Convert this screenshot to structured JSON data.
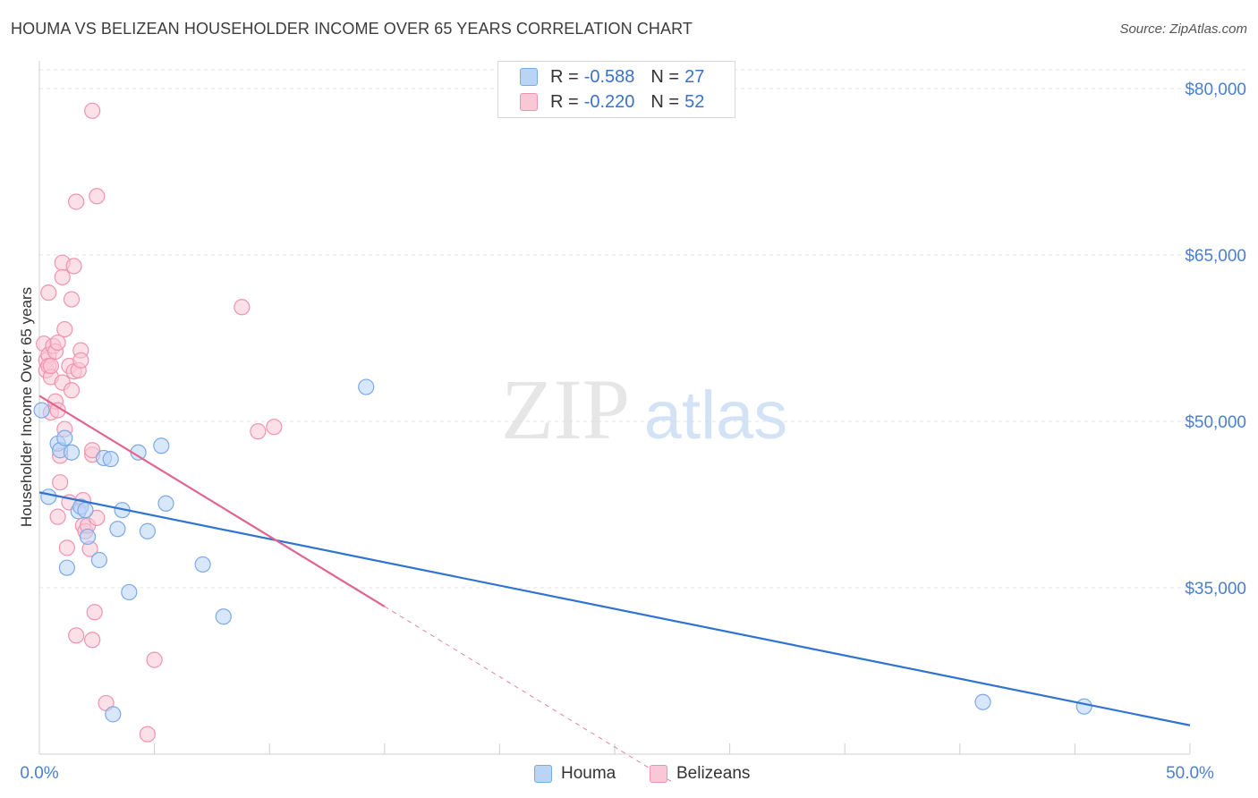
{
  "title": "HOUMA VS BELIZEAN HOUSEHOLDER INCOME OVER 65 YEARS CORRELATION CHART",
  "source": "Source: ZipAtlas.com",
  "watermark": {
    "zip": "ZIP",
    "atlas": "atlas"
  },
  "legend": {
    "series1": {
      "r_label": "R =",
      "r_value": "-0.588",
      "n_label": "N =",
      "n_value": "27"
    },
    "series2": {
      "r_label": "R =",
      "r_value": "-0.220",
      "n_label": "N =",
      "n_value": "52"
    }
  },
  "bottom_legend": {
    "houma": "Houma",
    "belizeans": "Belizeans"
  },
  "colors": {
    "houma_fill": "#b9d4f5",
    "houma_stroke": "#7aaae6",
    "houma_line": "#2f74d0",
    "belize_fill": "#f9c7d6",
    "belize_stroke": "#ef93b0",
    "belize_line": "#e0648e",
    "tick_label": "#4a7fd0",
    "grid": "#e3e3e3"
  },
  "chart_data": {
    "type": "scatter",
    "title": "HOUMA VS BELIZEAN HOUSEHOLDER INCOME OVER 65 YEARS CORRELATION CHART",
    "xlabel": "",
    "ylabel": "Householder Income Over 65 years",
    "xlim": [
      0,
      50
    ],
    "ylim": [
      20000,
      82500
    ],
    "x_tick_labels": [
      {
        "value": 0,
        "label": "0.0%"
      },
      {
        "value": 50,
        "label": "50.0%"
      }
    ],
    "y_ticks": [
      {
        "value": 80000,
        "label": "$80,000"
      },
      {
        "value": 65000,
        "label": "$65,000"
      },
      {
        "value": 50000,
        "label": "$50,000"
      },
      {
        "value": 35000,
        "label": "$35,000"
      }
    ],
    "series": [
      {
        "name": "Houma",
        "r": -0.588,
        "n": 27,
        "trend": {
          "x0": 0,
          "y0": 43600,
          "x1": 50,
          "y1": 22600,
          "dashed_from": null
        },
        "points": [
          [
            0.4,
            43200
          ],
          [
            0.8,
            48000
          ],
          [
            0.9,
            47400
          ],
          [
            1.1,
            48500
          ],
          [
            1.2,
            36800
          ],
          [
            1.4,
            47200
          ],
          [
            1.7,
            41900
          ],
          [
            1.8,
            42300
          ],
          [
            2.0,
            42000
          ],
          [
            2.1,
            39600
          ],
          [
            2.6,
            37500
          ],
          [
            2.8,
            46700
          ],
          [
            3.1,
            46600
          ],
          [
            3.2,
            23600
          ],
          [
            3.4,
            40300
          ],
          [
            3.6,
            42000
          ],
          [
            3.9,
            34600
          ],
          [
            4.3,
            47200
          ],
          [
            4.7,
            40100
          ],
          [
            5.3,
            47800
          ],
          [
            5.5,
            42600
          ],
          [
            7.1,
            37100
          ],
          [
            8.0,
            32400
          ],
          [
            14.2,
            53100
          ],
          [
            41.0,
            24700
          ],
          [
            45.4,
            24300
          ],
          [
            0.1,
            51000
          ]
        ]
      },
      {
        "name": "Belizeans",
        "r": -0.22,
        "n": 52,
        "trend": {
          "x0": 0,
          "y0": 52300,
          "x1": 50,
          "y1": -11000,
          "solid_until": 15,
          "dashed_until": 27.5
        },
        "points": [
          [
            0.2,
            57000
          ],
          [
            0.3,
            55500
          ],
          [
            0.3,
            54600
          ],
          [
            0.4,
            56000
          ],
          [
            0.4,
            55000
          ],
          [
            0.4,
            61600
          ],
          [
            0.5,
            54000
          ],
          [
            0.5,
            55000
          ],
          [
            0.5,
            50800
          ],
          [
            0.6,
            56800
          ],
          [
            0.7,
            51800
          ],
          [
            0.7,
            56300
          ],
          [
            0.8,
            57100
          ],
          [
            0.8,
            41400
          ],
          [
            0.8,
            51000
          ],
          [
            0.9,
            44500
          ],
          [
            0.9,
            46900
          ],
          [
            1.0,
            64300
          ],
          [
            1.0,
            63000
          ],
          [
            1.0,
            53500
          ],
          [
            1.1,
            58300
          ],
          [
            1.1,
            49300
          ],
          [
            1.2,
            38600
          ],
          [
            1.3,
            55000
          ],
          [
            1.3,
            42700
          ],
          [
            1.4,
            52800
          ],
          [
            1.4,
            61000
          ],
          [
            1.5,
            64000
          ],
          [
            1.5,
            54500
          ],
          [
            1.6,
            69800
          ],
          [
            1.6,
            30700
          ],
          [
            1.7,
            54600
          ],
          [
            1.8,
            56400
          ],
          [
            1.8,
            55500
          ],
          [
            1.9,
            42900
          ],
          [
            1.9,
            40600
          ],
          [
            2.0,
            40100
          ],
          [
            2.1,
            40600
          ],
          [
            2.2,
            38500
          ],
          [
            2.3,
            47000
          ],
          [
            2.3,
            47400
          ],
          [
            2.3,
            30300
          ],
          [
            2.4,
            32800
          ],
          [
            2.3,
            78000
          ],
          [
            2.5,
            41300
          ],
          [
            2.5,
            70300
          ],
          [
            2.9,
            24600
          ],
          [
            4.7,
            21800
          ],
          [
            5.0,
            28500
          ],
          [
            8.8,
            60300
          ],
          [
            9.5,
            49100
          ],
          [
            10.2,
            49500
          ]
        ]
      }
    ]
  }
}
